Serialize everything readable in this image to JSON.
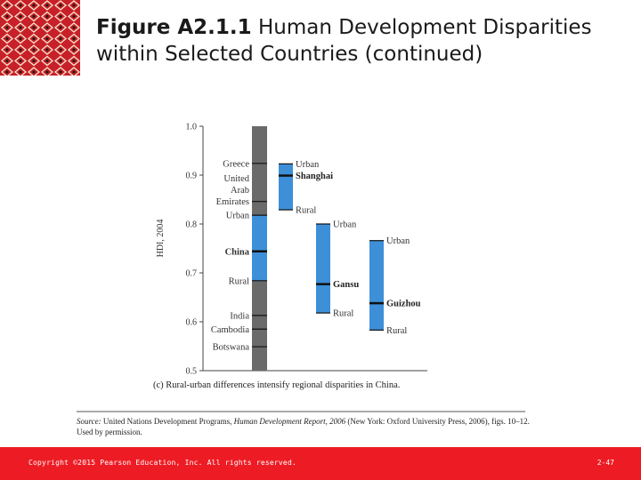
{
  "slide": {
    "title_bold": "Figure A2.1.1",
    "title_rest": " Human Development Disparities within Selected Countries (continued)",
    "caption": "(c)  Rural-urban differences intensify regional disparities in China.",
    "source_label": "Source:",
    "source_text_1": " United Nations Development Programs, ",
    "source_italic": "Human Development Report, 2006",
    "source_text_2": " (New York: Oxford University Press, 2006), figs. 10–12. Used by permission.",
    "footer_copyright": "Copyright ©2015 Pearson Education, Inc. All rights reserved.",
    "footer_page": "2-47"
  },
  "colors": {
    "accent_red": "#ed1c24",
    "corner_red": "#c8202a",
    "bar_blue": "#3d8fd8",
    "bar_gray": "#6a6a6a",
    "axis": "#444444"
  },
  "chart_data": {
    "type": "range-bar",
    "ylabel": "HDI, 2004",
    "ylim": [
      0.5,
      1.0
    ],
    "ticks": [
      "0.5",
      "0.6",
      "0.7",
      "0.8",
      "0.9",
      "1.0"
    ],
    "tick_values": [
      0.5,
      0.6,
      0.7,
      0.8,
      0.9,
      1.0
    ],
    "reference_bar": {
      "min": 0.5,
      "max": 1.0
    },
    "reference_markers": [
      {
        "label_lines": [
          "Greece"
        ],
        "value": 0.924
      },
      {
        "label_lines": [
          "United",
          "Arab",
          "Emirates"
        ],
        "value": 0.846
      },
      {
        "label_lines": [
          "Urban"
        ],
        "value": 0.818
      },
      {
        "label_lines": [
          "China"
        ],
        "value": 0.744,
        "bold": true
      },
      {
        "label_lines": [
          "Rural"
        ],
        "value": 0.684
      },
      {
        "label_lines": [
          "India"
        ],
        "value": 0.613
      },
      {
        "label_lines": [
          "Cambodia"
        ],
        "value": 0.585
      },
      {
        "label_lines": [
          "Botswana"
        ],
        "value": 0.549
      }
    ],
    "regions": [
      {
        "name": "Shanghai",
        "urban": 0.923,
        "mean": 0.899,
        "rural": 0.829,
        "urban_label": "Urban",
        "rural_label": "Rural"
      },
      {
        "name": "Gansu",
        "urban": 0.8,
        "mean": 0.677,
        "rural": 0.618,
        "urban_label": "Urban",
        "rural_label": "Rural"
      },
      {
        "name": "Guizhou",
        "urban": 0.766,
        "mean": 0.638,
        "rural": 0.583,
        "urban_label": "Urban",
        "rural_label": "Rural"
      }
    ]
  }
}
